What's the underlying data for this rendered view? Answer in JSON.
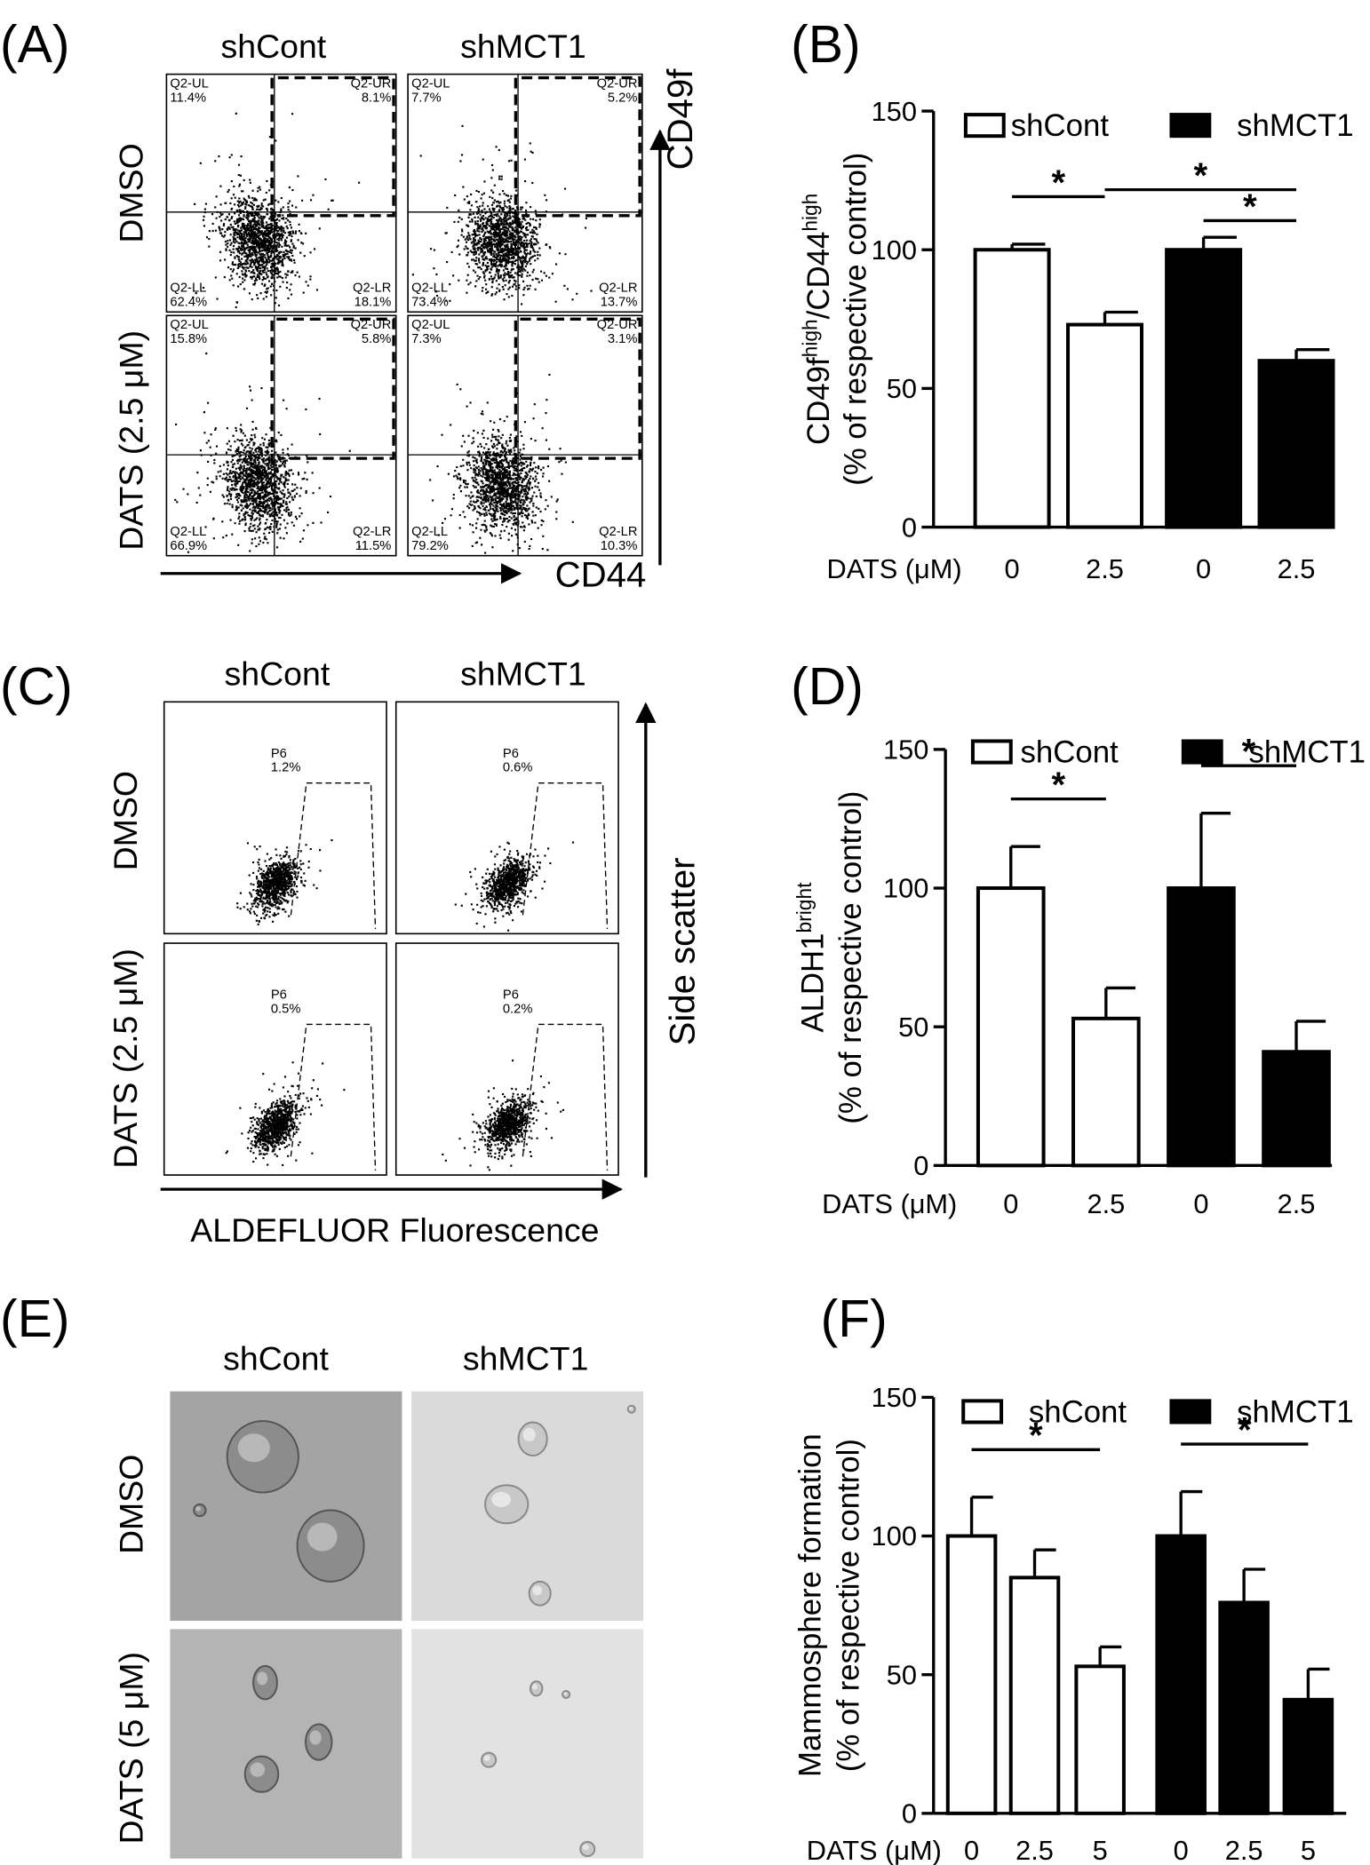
{
  "panels": [
    {
      "label": "(A)",
      "columns": [
        "shCont",
        "shMCT1"
      ],
      "rows": [
        "DMSO",
        "DATS (2.5 μM)"
      ],
      "x_axis": "CD44",
      "y_axis": "CD49f",
      "plots": [
        {
          "quadrants": [
            [
              "Q2-UL",
              "11.4%"
            ],
            [
              "Q2-UR",
              "8.1%"
            ],
            [
              "Q2-LL",
              "62.4%"
            ],
            [
              "Q2-LR",
              "18.1%"
            ]
          ]
        },
        {
          "quadrants": [
            [
              "Q2-UL",
              "7.7%"
            ],
            [
              "Q2-UR",
              "5.2%"
            ],
            [
              "Q2-LL",
              "73.4%"
            ],
            [
              "Q2-LR",
              "13.7%"
            ]
          ]
        },
        {
          "quadrants": [
            [
              "Q2-UL",
              "15.8%"
            ],
            [
              "Q2-UR",
              "5.8%"
            ],
            [
              "Q2-LL",
              "66.9%"
            ],
            [
              "Q2-LR",
              "11.5%"
            ]
          ]
        },
        {
          "quadrants": [
            [
              "Q2-UL",
              "7.3%"
            ],
            [
              "Q2-UR",
              "3.1%"
            ],
            [
              "Q2-LL",
              "79.2%"
            ],
            [
              "Q2-LR",
              "10.3%"
            ]
          ]
        }
      ]
    },
    {
      "label": "(C)",
      "columns": [
        "shCont",
        "shMCT1"
      ],
      "rows": [
        "DMSO",
        "DATS (2.5 μM)"
      ],
      "x_axis": "ALDEFLUOR Fluorescence",
      "y_axis": "Side scatter",
      "plots": [
        {
          "gate": [
            "P6",
            "1.2%"
          ]
        },
        {
          "gate": [
            "P6",
            "0.6%"
          ]
        },
        {
          "gate": [
            "P6",
            "0.5%"
          ]
        },
        {
          "gate": [
            "P6",
            "0.2%"
          ]
        }
      ]
    },
    {
      "label": "(E)",
      "columns": [
        "shCont",
        "shMCT1"
      ],
      "rows": [
        "DMSO",
        "DATS (5 μM)"
      ]
    }
  ],
  "chart_data": [
    {
      "type": "bar",
      "label": "(B)",
      "ylabel": [
        "CD49f",
        "high",
        "/CD44",
        "high"
      ],
      "ylabel2": "(% of respective control)",
      "xlabel": "DATS (μM)",
      "categories": [
        "0",
        "2.5",
        "0",
        "2.5"
      ],
      "series": [
        {
          "name": "shCont",
          "color": "#ffffff",
          "values": [
            100,
            73,
            null,
            null
          ],
          "errors": [
            2,
            4.5,
            null,
            null
          ]
        },
        {
          "name": "shMCT1",
          "color": "#000000",
          "values": [
            null,
            null,
            100,
            60
          ],
          "errors": [
            null,
            null,
            4.5,
            4
          ]
        }
      ],
      "ylim": [
        0,
        150
      ],
      "yticks": [
        0,
        50,
        100,
        150
      ],
      "annotations": [
        {
          "text": "*",
          "from": 0,
          "to": 1
        },
        {
          "text": "*",
          "from": 1,
          "to": 3
        },
        {
          "text": "*",
          "from": 2,
          "to": 3
        }
      ]
    },
    {
      "type": "bar",
      "label": "(D)",
      "ylabel": [
        "ALDH1",
        "bright"
      ],
      "ylabel2": "(% of respective control)",
      "xlabel": "DATS (μM)",
      "categories": [
        "0",
        "2.5",
        "0",
        "2.5"
      ],
      "series": [
        {
          "name": "shCont",
          "color": "#ffffff",
          "values": [
            100,
            53,
            null,
            null
          ],
          "errors": [
            15,
            11,
            null,
            null
          ]
        },
        {
          "name": "shMCT1",
          "color": "#000000",
          "values": [
            null,
            null,
            100,
            41
          ],
          "errors": [
            null,
            null,
            27,
            11
          ]
        }
      ],
      "ylim": [
        0,
        150
      ],
      "yticks": [
        0,
        50,
        100,
        150
      ],
      "annotations": [
        {
          "text": "*",
          "from": 0,
          "to": 1
        },
        {
          "text": "*",
          "from": 2,
          "to": 3
        }
      ]
    },
    {
      "type": "bar",
      "label": "(F)",
      "ylabel": [
        "Mammosphere formation"
      ],
      "ylabel2": "(% of respective control)",
      "xlabel": "DATS (μM)",
      "categories": [
        "0",
        "2.5",
        "5",
        "0",
        "2.5",
        "5"
      ],
      "series": [
        {
          "name": "shCont",
          "color": "#ffffff",
          "values": [
            100,
            85,
            53,
            null,
            null,
            null
          ],
          "errors": [
            14,
            10,
            7,
            null,
            null,
            null
          ]
        },
        {
          "name": "shMCT1",
          "color": "#000000",
          "values": [
            null,
            null,
            null,
            100,
            76,
            41
          ],
          "errors": [
            null,
            null,
            null,
            16,
            12,
            11
          ]
        }
      ],
      "ylim": [
        0,
        150
      ],
      "yticks": [
        0,
        50,
        100,
        150
      ],
      "annotations": [
        {
          "text": "*",
          "from": 0,
          "to": 2
        },
        {
          "text": "*",
          "from": 3,
          "to": 5
        }
      ]
    }
  ]
}
